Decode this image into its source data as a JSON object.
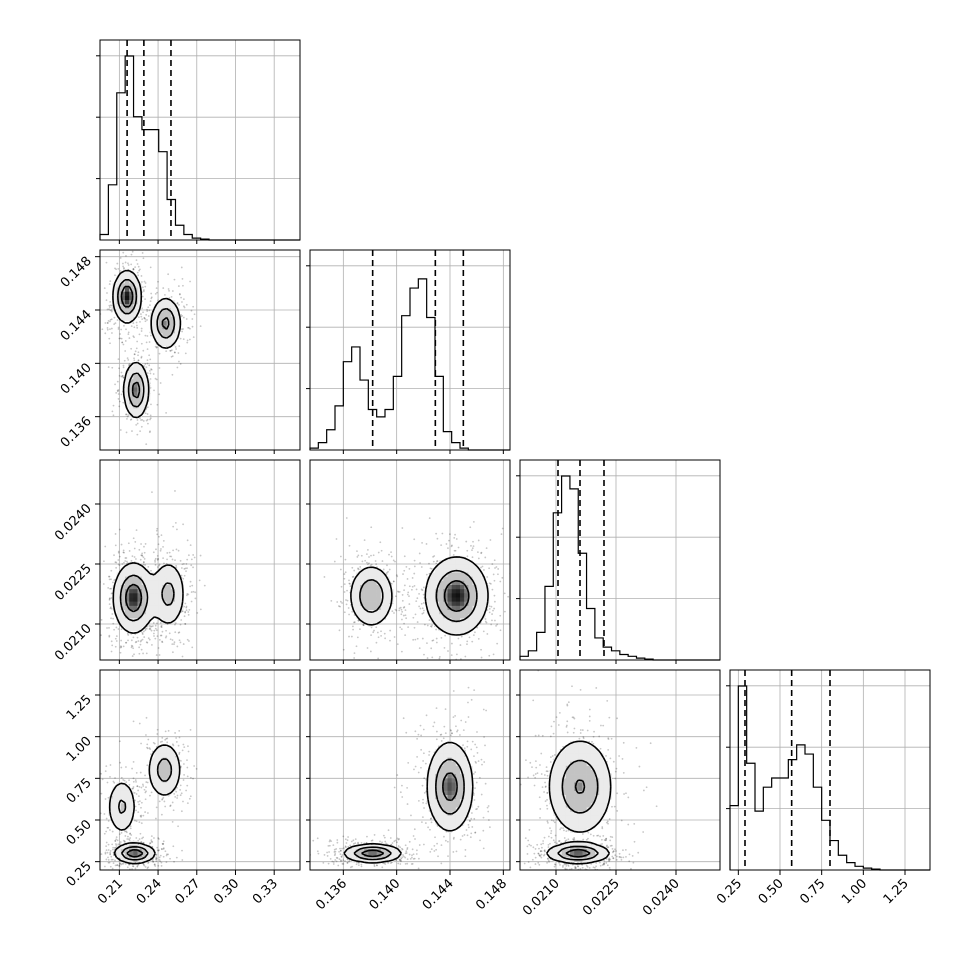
{
  "chart_data": {
    "type": "corner",
    "grid": true,
    "parameters": [
      {
        "range": [
          0.195,
          0.35
        ],
        "ticks": [
          0.21,
          0.24,
          0.27,
          0.3,
          0.33
        ],
        "tick_labels": [
          "0.21",
          "0.24",
          "0.27",
          "0.30",
          "0.33"
        ]
      },
      {
        "range": [
          0.1335,
          0.1485
        ],
        "ticks": [
          0.136,
          0.14,
          0.144,
          0.148
        ],
        "tick_labels": [
          "0.136",
          "0.140",
          "0.144",
          "0.148"
        ]
      },
      {
        "range": [
          0.0201,
          0.0251
        ],
        "ticks": [
          0.021,
          0.0225,
          0.024
        ],
        "tick_labels": [
          "0.0210",
          "0.0225",
          "0.0240"
        ]
      },
      {
        "range": [
          0.2,
          1.4
        ],
        "ticks": [
          0.25,
          0.5,
          0.75,
          1.0,
          1.25
        ],
        "tick_labels": [
          "0.25",
          "0.50",
          "0.75",
          "1.00",
          "1.25"
        ]
      }
    ],
    "quantiles": [
      [
        0.216,
        0.229,
        0.25
      ],
      [
        0.1382,
        0.1429,
        0.145
      ],
      [
        0.02105,
        0.0216,
        0.0222
      ],
      [
        0.29,
        0.57,
        0.8
      ]
    ],
    "histograms": [
      {
        "bins_start": 0.195,
        "bin_width": 0.0065,
        "values": [
          0.03,
          0.3,
          0.8,
          1.0,
          0.67,
          0.6,
          0.6,
          0.48,
          0.22,
          0.08,
          0.03,
          0.01,
          0.005,
          0,
          0,
          0,
          0,
          0,
          0,
          0,
          0,
          0,
          0,
          0
        ]
      },
      {
        "bins_start": 0.1335,
        "bin_width": 0.000625,
        "values": [
          0.01,
          0.04,
          0.11,
          0.24,
          0.48,
          0.56,
          0.38,
          0.22,
          0.18,
          0.22,
          0.4,
          0.73,
          0.88,
          0.93,
          0.72,
          0.4,
          0.1,
          0.04,
          0.01,
          0,
          0,
          0,
          0,
          0
        ]
      },
      {
        "bins_start": 0.0201,
        "bin_width": 0.000208,
        "values": [
          0.02,
          0.05,
          0.15,
          0.4,
          0.8,
          1.0,
          0.93,
          0.58,
          0.28,
          0.12,
          0.07,
          0.05,
          0.03,
          0.02,
          0.01,
          0.005,
          0,
          0,
          0,
          0,
          0,
          0,
          0,
          0
        ]
      },
      {
        "bins_start": 0.2,
        "bin_width": 0.05,
        "values": [
          0.35,
          1.0,
          0.58,
          0.32,
          0.45,
          0.5,
          0.5,
          0.6,
          0.68,
          0.63,
          0.45,
          0.27,
          0.16,
          0.08,
          0.04,
          0.02,
          0.01,
          0.005,
          0,
          0,
          0,
          0,
          0,
          0
        ]
      }
    ],
    "density_modes": {
      "1_0": [
        {
          "x": 0.216,
          "y": 0.145,
          "sx": 0.0055,
          "sy": 0.001,
          "w": 1.0
        },
        {
          "x": 0.246,
          "y": 0.143,
          "sx": 0.006,
          "sy": 0.001,
          "w": 0.8
        },
        {
          "x": 0.223,
          "y": 0.138,
          "sx": 0.005,
          "sy": 0.0011,
          "w": 0.85
        }
      ],
      "2_0": [
        {
          "x": 0.221,
          "y": 0.02165,
          "sx": 0.008,
          "sy": 0.00045,
          "w": 1.0
        },
        {
          "x": 0.248,
          "y": 0.02175,
          "sx": 0.007,
          "sy": 0.00045,
          "w": 0.55
        }
      ],
      "2_1": [
        {
          "x": 0.1381,
          "y": 0.0217,
          "sx": 0.00085,
          "sy": 0.0004,
          "w": 0.75
        },
        {
          "x": 0.1445,
          "y": 0.0217,
          "sx": 0.0012,
          "sy": 0.0005,
          "w": 1.0
        }
      ],
      "3_0": [
        {
          "x": 0.222,
          "y": 0.3,
          "sx": 0.008,
          "sy": 0.03,
          "w": 1.0
        },
        {
          "x": 0.212,
          "y": 0.58,
          "sx": 0.006,
          "sy": 0.09,
          "w": 0.5
        },
        {
          "x": 0.245,
          "y": 0.8,
          "sx": 0.007,
          "sy": 0.09,
          "w": 0.6
        }
      ],
      "3_1": [
        {
          "x": 0.1382,
          "y": 0.3,
          "sx": 0.0011,
          "sy": 0.028,
          "w": 1.0
        },
        {
          "x": 0.144,
          "y": 0.7,
          "sx": 0.0009,
          "sy": 0.14,
          "w": 0.9
        }
      ],
      "3_2": [
        {
          "x": 0.02155,
          "y": 0.3,
          "sx": 0.0004,
          "sy": 0.03,
          "w": 1.0
        },
        {
          "x": 0.0216,
          "y": 0.7,
          "sx": 0.00042,
          "sy": 0.15,
          "w": 0.8
        }
      ]
    },
    "contour_levels": [
      0.15,
      0.45,
      0.75
    ],
    "points_per_panel": 850
  }
}
